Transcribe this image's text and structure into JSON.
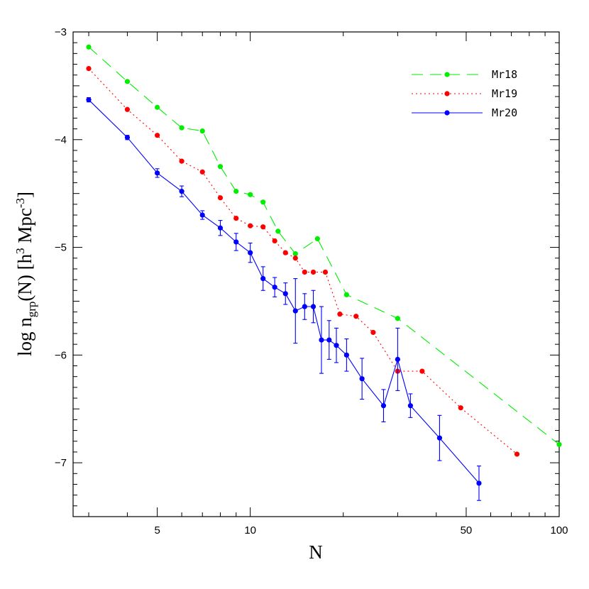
{
  "chart_data": {
    "type": "line",
    "title": "",
    "xlabel": "N",
    "ylabel": {
      "main": "log n",
      "sub": "grp",
      "rest": "(N) [h",
      "sup1": "3",
      "mid": " Mpc",
      "sup2": "-3",
      "end": "]"
    },
    "xscale": "log",
    "xlim": [
      2.67,
      100
    ],
    "ylim": [
      -7.5,
      -3
    ],
    "xticks_major": [
      5,
      10,
      50,
      100
    ],
    "xtick_labels": [
      "5",
      "10",
      "50",
      "100"
    ],
    "yticks_major": [
      -7,
      -6,
      -5,
      -4,
      -3
    ],
    "ytick_labels": [
      "−7",
      "−6",
      "−5",
      "−4",
      "−3"
    ],
    "legend_position": "top-right",
    "series": [
      {
        "name": "Mr18",
        "color": "#00ee00",
        "style": "dashed",
        "x": [
          3,
          4,
          5,
          6,
          7,
          8,
          9,
          10,
          11,
          12.3,
          14,
          16.5,
          20.5,
          30,
          100
        ],
        "y": [
          -3.14,
          -3.46,
          -3.7,
          -3.89,
          -3.92,
          -4.25,
          -4.48,
          -4.51,
          -4.58,
          -4.85,
          -5.06,
          -4.92,
          -5.44,
          -5.66,
          -6.83
        ]
      },
      {
        "name": "Mr19",
        "color": "#ff0000",
        "style": "dotted",
        "x": [
          3,
          4,
          5,
          6,
          7,
          8,
          9,
          10,
          11,
          12,
          13,
          14,
          15,
          16,
          17.5,
          19.5,
          22,
          25,
          30,
          36,
          48,
          73
        ],
        "y": [
          -3.34,
          -3.72,
          -3.96,
          -4.2,
          -4.3,
          -4.54,
          -4.73,
          -4.8,
          -4.81,
          -4.94,
          -5.05,
          -5.1,
          -5.23,
          -5.23,
          -5.23,
          -5.62,
          -5.64,
          -5.79,
          -6.15,
          -6.15,
          -6.49,
          -6.92
        ]
      },
      {
        "name": "Mr20",
        "color": "#0000ff",
        "style": "solid",
        "x": [
          3,
          4,
          5,
          6,
          7,
          8,
          9,
          10,
          11,
          12,
          13,
          14,
          15,
          16,
          17,
          18,
          19,
          20.5,
          23,
          27,
          30,
          33,
          41,
          55
        ],
        "y": [
          -3.63,
          -3.98,
          -4.31,
          -4.48,
          -4.7,
          -4.82,
          -4.95,
          -5.05,
          -5.29,
          -5.37,
          -5.43,
          -5.59,
          -5.55,
          -5.55,
          -5.86,
          -5.86,
          -5.91,
          -6.0,
          -6.22,
          -6.47,
          -6.04,
          -6.47,
          -6.77,
          -7.19
        ],
        "err": [
          0.02,
          0.02,
          0.04,
          0.05,
          0.04,
          0.07,
          0.08,
          0.09,
          0.11,
          0.09,
          0.1,
          0.3,
          0.12,
          0.15,
          0.31,
          0.18,
          0.16,
          0.15,
          0.19,
          0.15,
          0.29,
          0.11,
          0.21,
          0.16
        ]
      }
    ]
  }
}
